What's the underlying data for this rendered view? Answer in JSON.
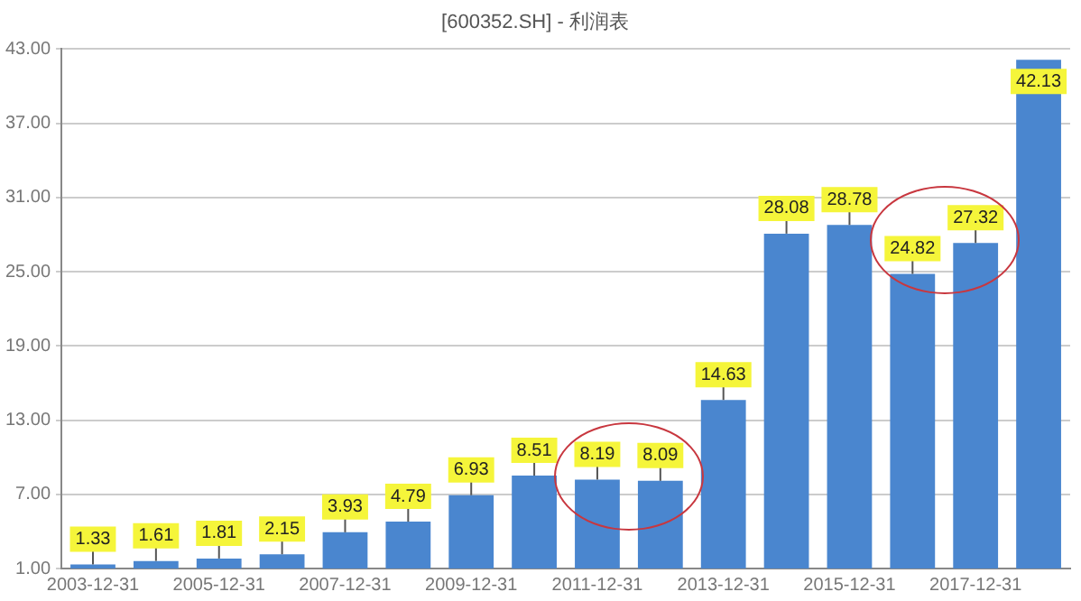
{
  "chart_data": {
    "type": "bar",
    "title": "[600352.SH] - 利润表",
    "categories": [
      "2003-12-31",
      null,
      "2005-12-31",
      null,
      "2007-12-31",
      null,
      "2009-12-31",
      null,
      "2011-12-31",
      null,
      "2013-12-31",
      null,
      "2015-12-31",
      null,
      "2017-12-31",
      null
    ],
    "values": [
      1.33,
      1.61,
      1.81,
      2.15,
      3.93,
      4.79,
      6.93,
      8.51,
      8.19,
      8.09,
      14.63,
      28.08,
      28.78,
      24.82,
      27.32,
      42.13
    ],
    "color": "#4a86cf",
    "ylim": [
      1,
      43
    ],
    "yticks": [
      {
        "value": 1,
        "label": "1.00"
      },
      {
        "value": 7,
        "label": "7.00"
      },
      {
        "value": 13,
        "label": "13.00"
      },
      {
        "value": 19,
        "label": "19.00"
      },
      {
        "value": 25,
        "label": "25.00"
      },
      {
        "value": 31,
        "label": "31.00"
      },
      {
        "value": 37,
        "label": "37.00"
      },
      {
        "value": 43,
        "label": "43.00"
      }
    ],
    "grid": "y",
    "data_labels": true,
    "legend": false
  }
}
